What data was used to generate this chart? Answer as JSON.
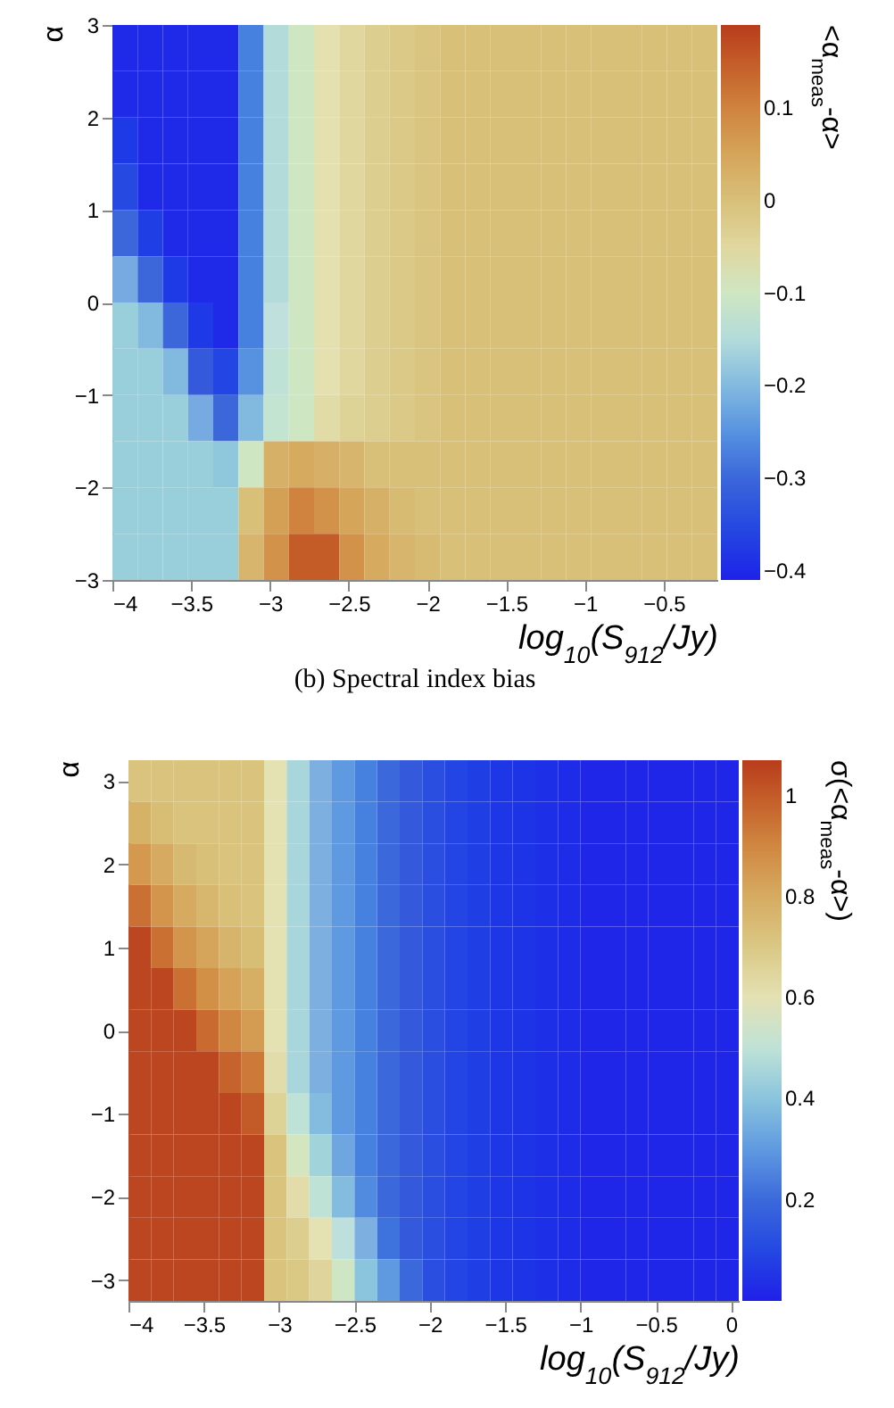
{
  "chart_data": [
    {
      "type": "heatmap",
      "xlabel": "log$_{10}$(S$_{912}$/Jy)",
      "ylabel": "α",
      "clabel": "<α$_{meas}$-α>",
      "annotations": [
        "(b) Spectral index bias"
      ],
      "xlim": [
        -4,
        -0.16
      ],
      "xticks": [
        -4,
        -3.5,
        -3,
        -2.5,
        -2,
        -1.5,
        -1,
        -0.5
      ],
      "ylim": [
        -3,
        3
      ],
      "yticks": [
        -3,
        -2,
        -1,
        0,
        1,
        2,
        3
      ],
      "clim": [
        -0.41,
        0.19
      ],
      "cticks": [
        -0.4,
        -0.3,
        -0.2,
        -0.1,
        0,
        0.1
      ],
      "x": [
        -3.92,
        -3.76,
        -3.6,
        -3.44,
        -3.28,
        -3.12,
        -2.96,
        -2.8,
        -2.64,
        -2.48,
        -2.32,
        -2.16,
        -2,
        -1.84,
        -1.68,
        -1.52,
        -1.36,
        -1.2,
        -1.04,
        -0.88,
        -0.72,
        -0.56,
        -0.4,
        -0.24
      ],
      "y": [
        2.75,
        2.25,
        1.75,
        1.25,
        0.75,
        0.25,
        -0.25,
        -0.75,
        -1.25,
        -1.75,
        -2.25,
        -2.75
      ],
      "cells": [
        [
          -0.4,
          -0.4,
          -0.4,
          -0.4,
          -0.4,
          -0.27,
          -0.15,
          -0.1,
          -0.07,
          -0.05,
          -0.03,
          -0.02,
          -0.01,
          0,
          0,
          0,
          0,
          0,
          0,
          0,
          0,
          0,
          0,
          0
        ],
        [
          -0.4,
          -0.4,
          -0.4,
          -0.4,
          -0.4,
          -0.27,
          -0.15,
          -0.1,
          -0.07,
          -0.05,
          -0.03,
          -0.02,
          -0.01,
          0,
          0,
          0,
          0,
          0,
          0,
          0,
          0,
          0,
          0,
          0
        ],
        [
          -0.38,
          -0.4,
          -0.4,
          -0.4,
          -0.4,
          -0.27,
          -0.15,
          -0.1,
          -0.07,
          -0.05,
          -0.03,
          -0.02,
          -0.01,
          0,
          0,
          0,
          0,
          0,
          0,
          0,
          0,
          0,
          0,
          0
        ],
        [
          -0.35,
          -0.4,
          -0.4,
          -0.4,
          -0.4,
          -0.27,
          -0.15,
          -0.1,
          -0.07,
          -0.05,
          -0.03,
          -0.02,
          -0.01,
          0,
          0,
          0,
          0,
          0,
          0,
          0,
          0,
          0,
          0,
          0
        ],
        [
          -0.3,
          -0.37,
          -0.4,
          -0.4,
          -0.4,
          -0.27,
          -0.15,
          -0.1,
          -0.07,
          -0.05,
          -0.03,
          -0.02,
          -0.01,
          0,
          0,
          0,
          0,
          0,
          0,
          0,
          0,
          0,
          0,
          0
        ],
        [
          -0.22,
          -0.3,
          -0.38,
          -0.4,
          -0.4,
          -0.27,
          -0.15,
          -0.1,
          -0.07,
          -0.05,
          -0.03,
          -0.02,
          -0.01,
          0,
          0,
          0,
          0,
          0,
          0,
          0,
          0,
          0,
          0,
          0
        ],
        [
          -0.17,
          -0.2,
          -0.3,
          -0.38,
          -0.4,
          -0.27,
          -0.14,
          -0.1,
          -0.07,
          -0.05,
          -0.03,
          -0.02,
          -0.01,
          0,
          0,
          0,
          0,
          0,
          0,
          0,
          0,
          0,
          0,
          0
        ],
        [
          -0.17,
          -0.17,
          -0.2,
          -0.32,
          -0.36,
          -0.25,
          -0.13,
          -0.1,
          -0.07,
          -0.05,
          -0.03,
          -0.02,
          -0.01,
          0,
          0,
          0,
          0,
          0,
          0,
          0,
          0,
          0,
          0,
          0
        ],
        [
          -0.17,
          -0.17,
          -0.17,
          -0.22,
          -0.3,
          -0.2,
          -0.12,
          -0.1,
          -0.06,
          -0.04,
          -0.03,
          -0.02,
          -0.01,
          0,
          0,
          0,
          0,
          0,
          0,
          0,
          0,
          0,
          0,
          0
        ],
        [
          -0.17,
          -0.17,
          -0.17,
          -0.17,
          -0.18,
          -0.1,
          0.03,
          0.04,
          0.03,
          0.02,
          0,
          0,
          0,
          0,
          0,
          0,
          0,
          0,
          0,
          0,
          0,
          0,
          0,
          0
        ],
        [
          -0.17,
          -0.17,
          -0.17,
          -0.17,
          -0.17,
          0,
          0.06,
          0.1,
          0.08,
          0.05,
          0.03,
          0.01,
          0,
          0,
          0,
          0,
          0,
          0,
          0,
          0,
          0,
          0,
          0,
          0
        ],
        [
          -0.17,
          -0.17,
          -0.17,
          -0.17,
          -0.17,
          0.02,
          0.08,
          0.15,
          0.15,
          0.08,
          0.04,
          0.02,
          0.01,
          0,
          0,
          0,
          0,
          0,
          0,
          0,
          0,
          0,
          0,
          0
        ]
      ]
    },
    {
      "type": "heatmap",
      "xlabel": "log$_{10}$(S$_{912}$/Jy)",
      "ylabel": "α",
      "clabel": "σ(<α$_{meas}$-α>)",
      "xlim": [
        -4,
        0.05
      ],
      "xticks": [
        -4,
        -3.5,
        -3,
        -2.5,
        -2,
        -1.5,
        -1,
        -0.5,
        0
      ],
      "ylim": [
        -3.25,
        3.25
      ],
      "yticks": [
        -3,
        -2,
        -1,
        0,
        1,
        2,
        3
      ],
      "clim": [
        0,
        1.07
      ],
      "cticks": [
        0.2,
        0.4,
        0.6,
        0.8,
        1
      ],
      "x": [
        -3.925,
        -3.775,
        -3.625,
        -3.475,
        -3.325,
        -3.175,
        -3.025,
        -2.875,
        -2.725,
        -2.575,
        -2.425,
        -2.275,
        -2.125,
        -1.975,
        -1.825,
        -1.675,
        -1.525,
        -1.375,
        -1.225,
        -1.075,
        -0.925,
        -0.775,
        -0.625,
        -0.475,
        -0.325,
        -0.175,
        -0.025
      ],
      "y": [
        3,
        2.5,
        2,
        1.5,
        1,
        0.5,
        0,
        -0.5,
        -1,
        -1.5,
        -2,
        -2.5,
        -3
      ],
      "cells": [
        [
          0.72,
          0.72,
          0.72,
          0.72,
          0.72,
          0.72,
          0.6,
          0.45,
          0.35,
          0.3,
          0.25,
          0.2,
          0.16,
          0.12,
          0.09,
          0.07,
          0.05,
          0.04,
          0.03,
          0.02,
          0.01,
          0.01,
          0.01,
          0.01,
          0.01,
          0.01,
          0.01
        ],
        [
          0.78,
          0.74,
          0.72,
          0.72,
          0.72,
          0.72,
          0.6,
          0.45,
          0.35,
          0.3,
          0.25,
          0.2,
          0.16,
          0.12,
          0.09,
          0.07,
          0.05,
          0.04,
          0.03,
          0.02,
          0.01,
          0.01,
          0.01,
          0.01,
          0.01,
          0.01,
          0.01
        ],
        [
          0.86,
          0.8,
          0.75,
          0.73,
          0.72,
          0.72,
          0.6,
          0.45,
          0.35,
          0.3,
          0.25,
          0.2,
          0.16,
          0.12,
          0.09,
          0.07,
          0.05,
          0.04,
          0.03,
          0.02,
          0.01,
          0.01,
          0.01,
          0.01,
          0.01,
          0.01,
          0.01
        ],
        [
          0.95,
          0.87,
          0.8,
          0.76,
          0.73,
          0.72,
          0.6,
          0.45,
          0.35,
          0.3,
          0.25,
          0.2,
          0.16,
          0.12,
          0.09,
          0.07,
          0.05,
          0.04,
          0.03,
          0.02,
          0.01,
          0.01,
          0.01,
          0.01,
          0.01,
          0.01,
          0.01
        ],
        [
          1.05,
          0.95,
          0.87,
          0.82,
          0.77,
          0.74,
          0.6,
          0.45,
          0.35,
          0.3,
          0.25,
          0.2,
          0.16,
          0.12,
          0.09,
          0.07,
          0.05,
          0.04,
          0.03,
          0.02,
          0.01,
          0.01,
          0.01,
          0.01,
          0.01,
          0.01,
          0.01
        ],
        [
          1.05,
          1.05,
          0.95,
          0.88,
          0.83,
          0.79,
          0.6,
          0.45,
          0.35,
          0.3,
          0.25,
          0.2,
          0.16,
          0.12,
          0.09,
          0.07,
          0.05,
          0.04,
          0.03,
          0.02,
          0.01,
          0.01,
          0.01,
          0.01,
          0.01,
          0.01,
          0.01
        ],
        [
          1.05,
          1.05,
          1.05,
          0.96,
          0.9,
          0.85,
          0.6,
          0.45,
          0.35,
          0.3,
          0.25,
          0.2,
          0.16,
          0.12,
          0.09,
          0.07,
          0.05,
          0.04,
          0.03,
          0.02,
          0.01,
          0.01,
          0.01,
          0.01,
          0.01,
          0.01,
          0.01
        ],
        [
          1.05,
          1.05,
          1.05,
          1.05,
          0.98,
          0.93,
          0.62,
          0.45,
          0.35,
          0.3,
          0.25,
          0.2,
          0.16,
          0.12,
          0.09,
          0.07,
          0.05,
          0.04,
          0.03,
          0.02,
          0.01,
          0.01,
          0.01,
          0.01,
          0.01,
          0.01,
          0.01
        ],
        [
          1.05,
          1.05,
          1.05,
          1.05,
          1.05,
          1,
          0.66,
          0.5,
          0.38,
          0.3,
          0.25,
          0.2,
          0.16,
          0.12,
          0.09,
          0.07,
          0.05,
          0.04,
          0.03,
          0.02,
          0.01,
          0.01,
          0.01,
          0.01,
          0.01,
          0.01,
          0.01
        ],
        [
          1.05,
          1.05,
          1.05,
          1.05,
          1.05,
          1.05,
          0.72,
          0.56,
          0.44,
          0.33,
          0.25,
          0.2,
          0.16,
          0.12,
          0.09,
          0.07,
          0.05,
          0.04,
          0.03,
          0.02,
          0.01,
          0.01,
          0.01,
          0.01,
          0.01,
          0.01,
          0.01
        ],
        [
          1.05,
          1.05,
          1.05,
          1.05,
          1.05,
          1.05,
          0.72,
          0.62,
          0.5,
          0.38,
          0.27,
          0.2,
          0.16,
          0.12,
          0.09,
          0.07,
          0.05,
          0.04,
          0.03,
          0.02,
          0.01,
          0.01,
          0.01,
          0.01,
          0.01,
          0.01,
          0.01
        ],
        [
          1.05,
          1.05,
          1.05,
          1.05,
          1.05,
          1.05,
          0.72,
          0.68,
          0.6,
          0.48,
          0.35,
          0.22,
          0.16,
          0.12,
          0.09,
          0.07,
          0.05,
          0.04,
          0.03,
          0.02,
          0.01,
          0.01,
          0.01,
          0.01,
          0.01,
          0.01,
          0.01
        ],
        [
          1.05,
          1.05,
          1.05,
          1.05,
          1.05,
          1.05,
          0.72,
          0.7,
          0.65,
          0.55,
          0.4,
          0.3,
          0.2,
          0.12,
          0.09,
          0.07,
          0.05,
          0.04,
          0.03,
          0.02,
          0.01,
          0.01,
          0.01,
          0.01,
          0.01,
          0.01,
          0.01
        ]
      ]
    }
  ]
}
